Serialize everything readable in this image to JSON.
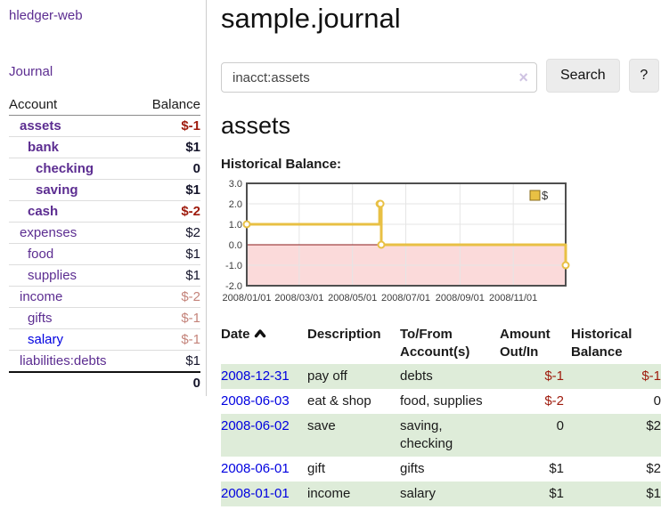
{
  "app": {
    "brand": "hledger-web",
    "nav_journal": "Journal"
  },
  "sidebar": {
    "headers": {
      "account": "Account",
      "balance": "Balance"
    },
    "accounts": [
      {
        "name": "assets",
        "indent": 0,
        "bold": true,
        "balance": "$-1",
        "balance_class": "neg"
      },
      {
        "name": "bank",
        "indent": 1,
        "bold": true,
        "balance": "$1",
        "balance_class": ""
      },
      {
        "name": "checking",
        "indent": 2,
        "bold": true,
        "balance": "0",
        "balance_class": ""
      },
      {
        "name": "saving",
        "indent": 2,
        "bold": true,
        "balance": "$1",
        "balance_class": ""
      },
      {
        "name": "cash",
        "indent": 1,
        "bold": true,
        "balance": "$-2",
        "balance_class": "neg"
      },
      {
        "name": "expenses",
        "indent": 0,
        "bold": false,
        "balance": "$2",
        "balance_class": ""
      },
      {
        "name": "food",
        "indent": 1,
        "bold": false,
        "balance": "$1",
        "balance_class": ""
      },
      {
        "name": "supplies",
        "indent": 1,
        "bold": false,
        "balance": "$1",
        "balance_class": ""
      },
      {
        "name": "income",
        "indent": 0,
        "bold": false,
        "balance": "$-2",
        "balance_class": "faint"
      },
      {
        "name": "gifts",
        "indent": 1,
        "bold": false,
        "balance": "$-1",
        "balance_class": "faint"
      },
      {
        "name": "salary",
        "indent": 1,
        "bold": false,
        "balance": "$-1",
        "balance_class": "faint",
        "link_class": "blue"
      },
      {
        "name": "liabilities:debts",
        "indent": 0,
        "bold": false,
        "balance": "$1",
        "balance_class": ""
      }
    ],
    "total": "0"
  },
  "header": {
    "title": "sample.journal"
  },
  "search": {
    "value": "inacct:assets",
    "clear_glyph": "×",
    "button": "Search",
    "help_button": "?"
  },
  "account_page": {
    "title": "assets",
    "chart_label": "Historical Balance:"
  },
  "chart_data": {
    "type": "line",
    "step": true,
    "title": "Historical Balance:",
    "x_start": "2008-01-01",
    "x_end": "2008-12-31",
    "ylim": [
      -2,
      3
    ],
    "y_ticks": [
      3.0,
      2.0,
      1.0,
      0.0,
      -1.0,
      -2.0
    ],
    "x_ticks": [
      {
        "date": "2008-01-01",
        "label": "2008/01/01"
      },
      {
        "date": "2008-03-01",
        "label": "2008/03/01"
      },
      {
        "date": "2008-05-01",
        "label": "2008/05/01"
      },
      {
        "date": "2008-07-01",
        "label": "2008/07/01"
      },
      {
        "date": "2008-09-01",
        "label": "2008/09/01"
      },
      {
        "date": "2008-11-01",
        "label": "2008/11/01"
      }
    ],
    "series": [
      {
        "name": "$",
        "color": "#e8c044",
        "points": [
          [
            "2008-01-01",
            1
          ],
          [
            "2008-06-01",
            2
          ],
          [
            "2008-06-02",
            2
          ],
          [
            "2008-06-03",
            0
          ],
          [
            "2008-12-31",
            -1
          ]
        ]
      }
    ],
    "legend": {
      "label": "$",
      "position": "top-right"
    },
    "grid": true,
    "colors": {
      "grid": "#e5e5e5",
      "border": "#4f4f4f",
      "zero_line": "#8b1a1a",
      "negative_fill": "#fbdada",
      "legend_border": "#8a6d1d"
    }
  },
  "register": {
    "columns": [
      "Date",
      "Description",
      "To/From Account(s)",
      "Amount Out/In",
      "Historical Balance"
    ],
    "rows": [
      {
        "date": "2008-12-31",
        "description": "pay off",
        "accounts": "debts",
        "amount": "$-1",
        "balance": "$-1"
      },
      {
        "date": "2008-06-03",
        "description": "eat & shop",
        "accounts": "food, supplies",
        "amount": "$-2",
        "balance": "0"
      },
      {
        "date": "2008-06-02",
        "description": "save",
        "accounts": "saving, checking",
        "amount": "0",
        "balance": "$2"
      },
      {
        "date": "2008-06-01",
        "description": "gift",
        "accounts": "gifts",
        "amount": "$1",
        "balance": "$2"
      },
      {
        "date": "2008-01-01",
        "description": "income",
        "accounts": "salary",
        "amount": "$1",
        "balance": "$1"
      }
    ]
  }
}
